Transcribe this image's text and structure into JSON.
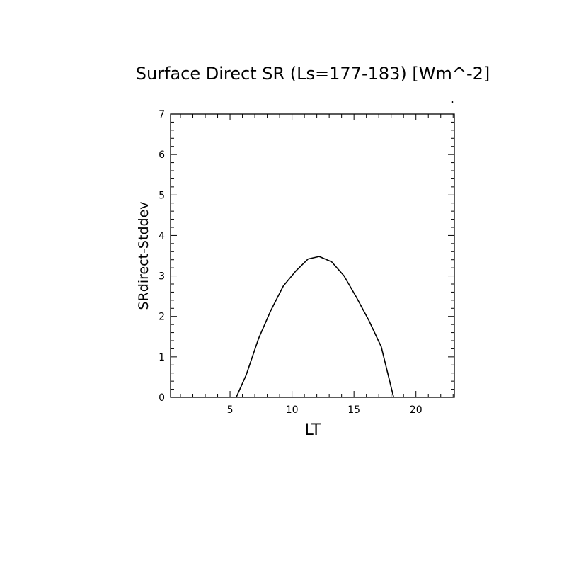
{
  "chart_data": {
    "type": "line",
    "title": "Surface Direct SR (Ls=177-183) [Wm^-2]",
    "xlabel": "LT",
    "ylabel": "SRdirect-Stddev",
    "xlim": [
      0.2,
      23.1
    ],
    "ylim": [
      0,
      7
    ],
    "xticks": [
      5,
      10,
      15,
      20
    ],
    "yticks": [
      0,
      1,
      2,
      3,
      4,
      5,
      6,
      7
    ],
    "grid": false,
    "series": [
      {
        "x": [
          0.5,
          1.5,
          2.5,
          3.5,
          4.5,
          5.5,
          6.3,
          7.3,
          8.3,
          9.3,
          10.3,
          11.3,
          12.2,
          13.2,
          14.2,
          15.2,
          16.2,
          17.2,
          18.2,
          19.2,
          20.2,
          21.2,
          22.2,
          23.0
        ],
        "y": [
          0,
          0,
          0,
          0,
          0,
          0,
          0.55,
          1.45,
          2.15,
          2.75,
          3.12,
          3.42,
          3.48,
          3.35,
          3.0,
          2.47,
          1.9,
          1.25,
          0,
          0,
          0,
          0,
          0,
          0
        ]
      }
    ]
  }
}
